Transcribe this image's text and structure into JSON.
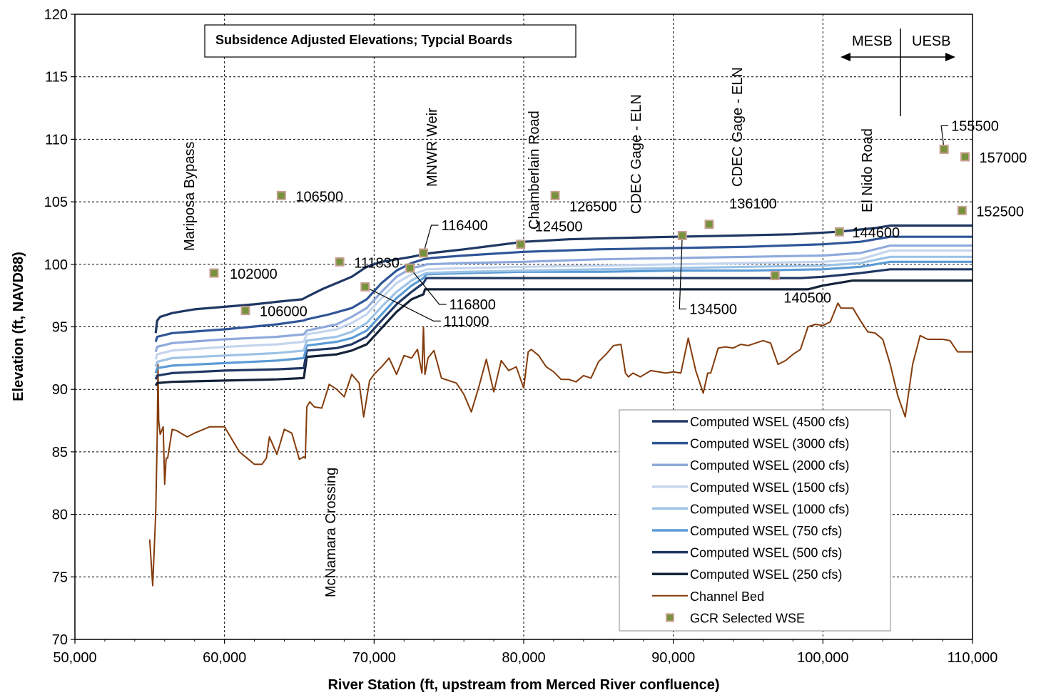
{
  "chart_data": {
    "type": "line",
    "title": "Subsidence Adjusted Elevations; Typcial Boards",
    "xlabel": "River Station (ft, upstream from Merced River confluence)",
    "ylabel": "Elevation (ft, NAVD88)",
    "xlim": [
      50000,
      110000
    ],
    "ylim": [
      70,
      120
    ],
    "grid": true,
    "legend_position": "bottom-right",
    "x_ticks": [
      "50,000",
      "60,000",
      "70,000",
      "80,000",
      "90,000",
      "100,000",
      "110,000"
    ],
    "y_ticks": [
      "70",
      "75",
      "80",
      "85",
      "90",
      "95",
      "100",
      "105",
      "110",
      "115",
      "120"
    ],
    "series": [
      {
        "name": "Computed WSEL (4500 cfs)",
        "color": "#1f3864",
        "x": [
          55400,
          55500,
          55700,
          56500,
          58000,
          60000,
          62000,
          63500,
          65200,
          65500,
          66500,
          67500,
          68500,
          69500,
          70500,
          71500,
          72500,
          73300,
          73800,
          76000,
          78000,
          80000,
          83000,
          86000,
          90000,
          94000,
          98000,
          101000,
          103500,
          104500,
          110000
        ],
        "y": [
          94.5,
          95.5,
          95.8,
          96.1,
          96.4,
          96.6,
          96.8,
          97.0,
          97.2,
          97.4,
          98.0,
          98.5,
          99.0,
          99.8,
          100.2,
          100.4,
          100.6,
          100.8,
          100.9,
          101.2,
          101.5,
          101.8,
          102.0,
          102.1,
          102.2,
          102.3,
          102.4,
          102.6,
          102.9,
          103.1,
          103.1
        ]
      },
      {
        "name": "Computed WSEL (3000 cfs)",
        "color": "#2f5597",
        "x": [
          55400,
          55500,
          56500,
          60000,
          63500,
          65300,
          65500,
          67000,
          68500,
          69500,
          70500,
          71500,
          72500,
          73300,
          73800,
          76000,
          80000,
          85000,
          90000,
          95000,
          100000,
          102500,
          104500,
          110000
        ],
        "y": [
          93.8,
          94.2,
          94.5,
          94.8,
          95.2,
          95.5,
          95.6,
          96.0,
          96.5,
          97.2,
          98.5,
          99.5,
          100.1,
          100.4,
          100.5,
          100.7,
          101.0,
          101.2,
          101.3,
          101.4,
          101.6,
          101.8,
          102.2,
          102.2
        ]
      },
      {
        "name": "Computed WSEL (2000 cfs)",
        "color": "#8faadc",
        "x": [
          55400,
          55500,
          56500,
          60000,
          63500,
          65300,
          65500,
          67500,
          68500,
          69500,
          70500,
          71500,
          72500,
          73300,
          73500,
          76000,
          80000,
          85000,
          90000,
          95000,
          100000,
          102500,
          104500,
          110000
        ],
        "y": [
          93.0,
          93.4,
          93.7,
          94.0,
          94.2,
          94.4,
          94.7,
          95.2,
          95.8,
          96.5,
          97.8,
          99.0,
          99.7,
          99.9,
          100.0,
          100.1,
          100.2,
          100.4,
          100.5,
          100.6,
          100.7,
          100.9,
          101.5,
          101.5
        ]
      },
      {
        "name": "Computed WSEL (1500 cfs)",
        "color": "#c5d5ee",
        "x": [
          55400,
          55500,
          56500,
          60000,
          63500,
          65300,
          65500,
          67500,
          68500,
          69500,
          70500,
          71500,
          72500,
          73300,
          73500,
          76000,
          80000,
          85000,
          90000,
          95000,
          100000,
          102500,
          104500,
          110000
        ],
        "y": [
          92.4,
          92.8,
          93.1,
          93.4,
          93.6,
          93.8,
          94.4,
          94.8,
          95.3,
          96.0,
          97.3,
          98.5,
          99.2,
          99.5,
          99.6,
          99.7,
          99.8,
          99.9,
          100.0,
          100.1,
          100.2,
          100.4,
          101.1,
          101.1
        ]
      },
      {
        "name": "Computed WSEL (1000 cfs)",
        "color": "#9dc3e6",
        "x": [
          55400,
          55500,
          56500,
          60000,
          63500,
          65300,
          65500,
          67500,
          68500,
          69500,
          70500,
          71500,
          72500,
          73300,
          73500,
          76000,
          80000,
          85000,
          90000,
          95000,
          100000,
          102500,
          104500,
          110000
        ],
        "y": [
          91.8,
          92.2,
          92.5,
          92.7,
          92.9,
          93.1,
          93.9,
          94.2,
          94.6,
          95.3,
          96.6,
          97.8,
          98.7,
          99.2,
          99.3,
          99.4,
          99.5,
          99.6,
          99.7,
          99.8,
          99.9,
          100.1,
          100.6,
          100.6
        ]
      },
      {
        "name": "Computed WSEL (750 cfs)",
        "color": "#5b9bd5",
        "x": [
          55400,
          55500,
          56500,
          60000,
          63500,
          65300,
          65500,
          67500,
          68500,
          69500,
          70500,
          71500,
          72500,
          73300,
          73500,
          76000,
          80000,
          85000,
          90000,
          95000,
          100000,
          102500,
          104500,
          110000
        ],
        "y": [
          91.3,
          91.7,
          91.9,
          92.1,
          92.3,
          92.5,
          93.5,
          93.8,
          94.1,
          94.7,
          96.0,
          97.3,
          98.3,
          98.9,
          99.2,
          99.3,
          99.4,
          99.4,
          99.5,
          99.5,
          99.6,
          99.8,
          100.2,
          100.2
        ]
      },
      {
        "name": "Computed WSEL (500 cfs)",
        "color": "#203864",
        "x": [
          55400,
          55500,
          56500,
          60000,
          63500,
          65300,
          65500,
          67500,
          68500,
          69500,
          70500,
          71500,
          72500,
          73300,
          73500,
          76000,
          80000,
          85000,
          90000,
          95000,
          98500,
          100000,
          102500,
          104500,
          110000
        ],
        "y": [
          90.8,
          91.1,
          91.3,
          91.5,
          91.6,
          91.7,
          93.1,
          93.3,
          93.6,
          94.2,
          95.5,
          96.8,
          97.8,
          98.5,
          98.9,
          98.9,
          98.9,
          98.9,
          98.9,
          98.9,
          98.9,
          99.0,
          99.3,
          99.6,
          99.6
        ]
      },
      {
        "name": "Computed WSEL (250 cfs)",
        "color": "#152339",
        "x": [
          55400,
          55500,
          56500,
          60000,
          63500,
          65300,
          65500,
          67500,
          68500,
          69500,
          70500,
          71500,
          72500,
          73300,
          73400,
          76000,
          80000,
          85000,
          90000,
          95000,
          99000,
          100000,
          102000,
          110000
        ],
        "y": [
          90.3,
          90.5,
          90.6,
          90.7,
          90.8,
          90.9,
          92.6,
          92.8,
          93.1,
          93.6,
          94.9,
          96.2,
          97.2,
          97.6,
          98.0,
          98.0,
          98.0,
          98.0,
          98.0,
          98.0,
          98.0,
          98.3,
          98.7,
          98.7
        ]
      },
      {
        "name": "Channel Bed",
        "color": "#843c0c",
        "x": [
          55000,
          55200,
          55400,
          55500,
          55550,
          55600,
          55700,
          55900,
          56000,
          56100,
          56200,
          56500,
          56800,
          57500,
          58000,
          59000,
          59500,
          60000,
          60500,
          61000,
          61500,
          62000,
          62500,
          62800,
          63000,
          63500,
          64000,
          64500,
          65000,
          65300,
          65400,
          65500,
          65700,
          66000,
          66500,
          67000,
          67500,
          68000,
          68500,
          69000,
          69300,
          69700,
          70000,
          70500,
          71000,
          71500,
          72000,
          72500,
          72900,
          73200,
          73300,
          73400,
          73600,
          74000,
          74500,
          75000,
          75500,
          76000,
          76500,
          77000,
          77500,
          78000,
          78500,
          79000,
          79500,
          80000,
          80300,
          80500,
          81000,
          81500,
          82000,
          82500,
          83000,
          83500,
          84000,
          84500,
          85000,
          85500,
          86000,
          86500,
          86800,
          87000,
          87300,
          87800,
          88500,
          89000,
          89500,
          90000,
          90500,
          91000,
          91500,
          92000,
          92300,
          92500,
          93000,
          93500,
          94000,
          94500,
          95000,
          95500,
          96000,
          96500,
          97000,
          97500,
          98000,
          98500,
          99000,
          99500,
          100000,
          100500,
          101000,
          101200,
          101500,
          102000,
          102500,
          103000,
          103500,
          104000,
          104500,
          105000,
          105500,
          106000,
          106500,
          107000,
          107500,
          108000,
          108500,
          109000,
          109500,
          110000
        ],
        "y": [
          78.0,
          74.3,
          80.0,
          86.1,
          92.0,
          87.5,
          86.4,
          87.0,
          82.4,
          84.5,
          84.5,
          86.8,
          86.7,
          86.2,
          86.5,
          87.0,
          87.0,
          87.0,
          86.0,
          85.0,
          84.5,
          84.0,
          84.0,
          84.5,
          86.2,
          84.8,
          86.8,
          86.5,
          84.4,
          84.6,
          84.5,
          88.6,
          89.0,
          88.6,
          88.5,
          90.4,
          90.0,
          89.4,
          91.2,
          90.5,
          87.8,
          90.7,
          91.2,
          91.8,
          92.5,
          91.2,
          92.7,
          92.5,
          93.2,
          91.3,
          95.0,
          91.2,
          92.5,
          93.1,
          90.9,
          90.7,
          90.5,
          89.6,
          88.2,
          90.2,
          92.4,
          89.8,
          92.3,
          91.5,
          91.8,
          90.1,
          93.0,
          93.2,
          92.7,
          91.8,
          91.4,
          90.8,
          90.8,
          90.6,
          91.1,
          90.9,
          92.2,
          92.8,
          93.5,
          93.6,
          91.3,
          91.0,
          91.3,
          91.0,
          91.5,
          91.4,
          91.3,
          91.4,
          91.3,
          94.1,
          91.5,
          89.7,
          91.3,
          91.3,
          93.3,
          93.4,
          93.3,
          93.6,
          93.5,
          93.7,
          93.9,
          93.7,
          92.0,
          92.3,
          92.8,
          93.2,
          95.0,
          95.2,
          95.1,
          95.4,
          96.9,
          96.5,
          96.5,
          96.5,
          95.5,
          94.6,
          94.5,
          94.0,
          92.0,
          89.5,
          87.8,
          92.0,
          94.3,
          94.0,
          94.0,
          94.0,
          93.9,
          93.0,
          93.0,
          93.0
        ]
      }
    ],
    "points": {
      "name": "GCR Selected WSE",
      "color": "#76923c",
      "items": [
        {
          "x": 59300,
          "y": 99.3,
          "label": "102000"
        },
        {
          "x": 61400,
          "y": 96.3,
          "label": "106000"
        },
        {
          "x": 63800,
          "y": 105.5,
          "label": "106500"
        },
        {
          "x": 67700,
          "y": 100.2,
          "label": "111830"
        },
        {
          "x": 69400,
          "y": 98.2,
          "label": "111000"
        },
        {
          "x": 72400,
          "y": 99.7,
          "label": "116800"
        },
        {
          "x": 73300,
          "y": 100.9,
          "label": "116400"
        },
        {
          "x": 79800,
          "y": 101.6,
          "label": "124500"
        },
        {
          "x": 82100,
          "y": 105.5,
          "label": "126500"
        },
        {
          "x": 90600,
          "y": 102.3,
          "label": "134500"
        },
        {
          "x": 92400,
          "y": 103.2,
          "label": "136100"
        },
        {
          "x": 96800,
          "y": 99.1,
          "label": "140500"
        },
        {
          "x": 101100,
          "y": 102.6,
          "label": "144600"
        },
        {
          "x": 109300,
          "y": 104.3,
          "label": "152500"
        },
        {
          "x": 108100,
          "y": 109.2,
          "label": "155500"
        },
        {
          "x": 109500,
          "y": 108.6,
          "label": "157000"
        }
      ]
    },
    "annotations": {
      "landmarks": [
        "Mariposa Bypass",
        "McNamara Crossing",
        "MNWR Weir",
        "Chamberlain  Road",
        "CDEC Gage - ELN",
        "CDEC Gage - ELN",
        "El Nido Road"
      ],
      "reaches": [
        "MESB",
        "UESB"
      ]
    }
  }
}
